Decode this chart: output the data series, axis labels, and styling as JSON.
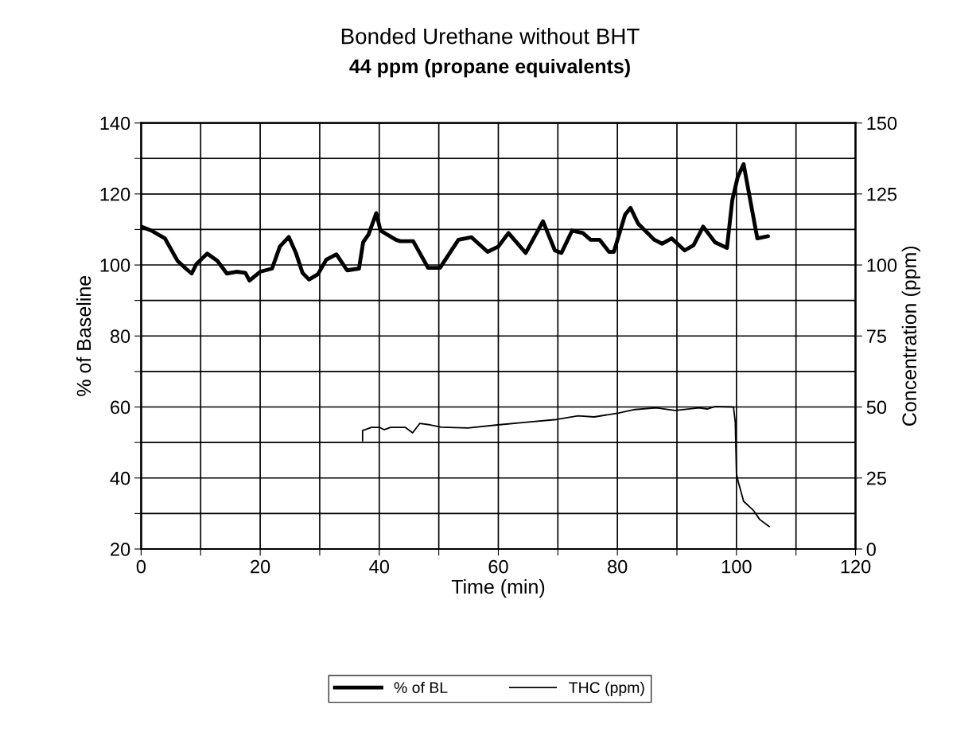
{
  "chart_data": {
    "type": "line",
    "title": "Bonded Urethane without BHT",
    "subtitle": "44 ppm (propane equivalents)",
    "xlabel": "Time (min)",
    "ylabel": "% of Baseline",
    "y2label": "Concentration (ppm)",
    "xlim": [
      0,
      120
    ],
    "xticks": [
      0,
      {
        "value": 10,
        "label": null
      },
      20,
      {
        "value": 30,
        "label": null
      },
      40,
      {
        "value": 50,
        "label": null
      },
      60,
      {
        "value": 70,
        "label": null
      },
      80,
      {
        "value": 90,
        "label": null
      },
      100,
      {
        "value": 110,
        "label": null
      },
      120
    ],
    "ylim": [
      20,
      140
    ],
    "yticks": [
      20,
      {
        "value": 30,
        "label": null
      },
      40,
      {
        "value": 50,
        "label": null
      },
      60,
      {
        "value": 70,
        "label": null
      },
      80,
      {
        "value": 90,
        "label": null
      },
      100,
      {
        "value": 110,
        "label": null
      },
      120,
      {
        "value": 130,
        "label": null
      },
      140
    ],
    "y2lim": [
      0,
      150
    ],
    "y2ticks": [
      0,
      25,
      50,
      75,
      100,
      125,
      150
    ],
    "grid": true,
    "legend": "bottom",
    "marker": "none",
    "line_style": "solid",
    "series": [
      {
        "name": "% of BL",
        "color": "#000000",
        "x": [
          0,
          1.7,
          4,
          6.1,
          7.5,
          8.5,
          9.3,
          11.1,
          12.8,
          14.4,
          16,
          17.5,
          18.2,
          20,
          22,
          23.3,
          24.8,
          26,
          27.1,
          28.2,
          29.7,
          31.1,
          32.8,
          34.6,
          36.6,
          37.3,
          38.2,
          39.5,
          40.2,
          42.8,
          43.5,
          45.7,
          48.2,
          50.2,
          53.3,
          55.5,
          58.2,
          60,
          61.7,
          64.6,
          67.5,
          69.5,
          70.6,
          72.4,
          74.2,
          75.5,
          77,
          78.6,
          79.4,
          81.3,
          82.2,
          83.5,
          86.2,
          87.5,
          89.1,
          91.3,
          92.8,
          94.4,
          96.4,
          98.4,
          99.3,
          100.2,
          101.2,
          103.5,
          105.3
        ],
        "values": [
          110.8,
          109.7,
          107.5,
          101.2,
          99,
          97.6,
          100.3,
          103.2,
          101.2,
          97.6,
          98.1,
          97.8,
          95.6,
          98.1,
          99,
          105.2,
          107.9,
          103.4,
          97.8,
          95.9,
          97.4,
          101.5,
          103,
          98.5,
          99,
          106.4,
          108.6,
          114.6,
          109.7,
          107.1,
          106.7,
          106.7,
          99.2,
          99.2,
          107.1,
          107.8,
          103.7,
          105.2,
          109,
          103.4,
          112.3,
          104.1,
          103.4,
          109.7,
          109,
          107.1,
          107.1,
          103.7,
          103.7,
          114.2,
          116.1,
          111.6,
          107.1,
          106,
          107.5,
          104.1,
          105.6,
          110.8,
          106.4,
          104.8,
          118.3,
          124.7,
          128.4,
          107.5,
          108.1
        ]
      },
      {
        "name": "THC (ppm)",
        "color": "#000000",
        "axis": "y2",
        "x": [
          37.2,
          37.2,
          38.7,
          40.1,
          40.8,
          41.9,
          44.4,
          45.6,
          46.8,
          48.6,
          50.4,
          54.9,
          59.9,
          64.4,
          69.8,
          73.4,
          76.1,
          80.2,
          82.9,
          86.5,
          89.7,
          93.7,
          95.1,
          96.4,
          99.5,
          99.8,
          100,
          100.3,
          101.2,
          102.8,
          103.9,
          105.5
        ],
        "values": [
          38.1,
          41.7,
          42.8,
          42.8,
          42,
          42.8,
          42.8,
          40.9,
          44.2,
          43.7,
          42.9,
          42.6,
          43.7,
          44.6,
          45.6,
          46.9,
          46.5,
          47.9,
          49.1,
          49.7,
          48.8,
          49.7,
          49.3,
          50.2,
          50,
          44.6,
          26.5,
          23.7,
          16.8,
          13.7,
          10.4,
          7.9
        ]
      }
    ]
  }
}
